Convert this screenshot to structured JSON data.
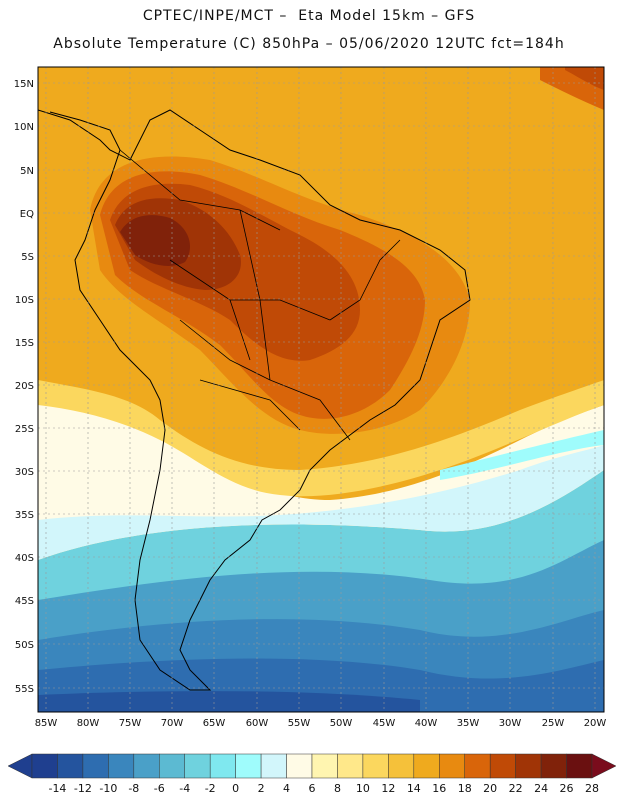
{
  "header": {
    "line1": "CPTEC/INPE/MCT –  Eta Model 15km – GFS",
    "line2": "Absolute Temperature (C) 850hPa – 05/06/2020 12UTC fct=184h"
  },
  "map": {
    "lat_labels": [
      "15N",
      "10N",
      "5N",
      "EQ",
      "5S",
      "10S",
      "15S",
      "20S",
      "25S",
      "30S",
      "35S",
      "40S",
      "45S",
      "50S",
      "55S"
    ],
    "lon_labels": [
      "85W",
      "80W",
      "75W",
      "70W",
      "65W",
      "60W",
      "55W",
      "50W",
      "45W",
      "40W",
      "35W",
      "30W",
      "25W",
      "20W"
    ],
    "extent": {
      "lon_min": -86,
      "lon_max": -19,
      "lat_min": -58,
      "lat_max": 16
    }
  },
  "colorbar": {
    "labels": [
      "-14",
      "-12",
      "-10",
      "-8",
      "-6",
      "-4",
      "-2",
      "0",
      "2",
      "4",
      "6",
      "8",
      "10",
      "12",
      "14",
      "16",
      "18",
      "20",
      "22",
      "24",
      "26",
      "28"
    ],
    "colors": [
      "#1f3f8f",
      "#24549e",
      "#2e6db0",
      "#3a86bd",
      "#4aa0c8",
      "#5cbad2",
      "#6fd2de",
      "#7fe8ef",
      "#9ffcfc",
      "#d2f6fb",
      "#fffbe6",
      "#fff5b0",
      "#ffe88a",
      "#fbd75e",
      "#f5c13a",
      "#efaa1e",
      "#e88a10",
      "#d9650a",
      "#c04a06",
      "#a03406",
      "#80220a",
      "#6a1010"
    ]
  }
}
